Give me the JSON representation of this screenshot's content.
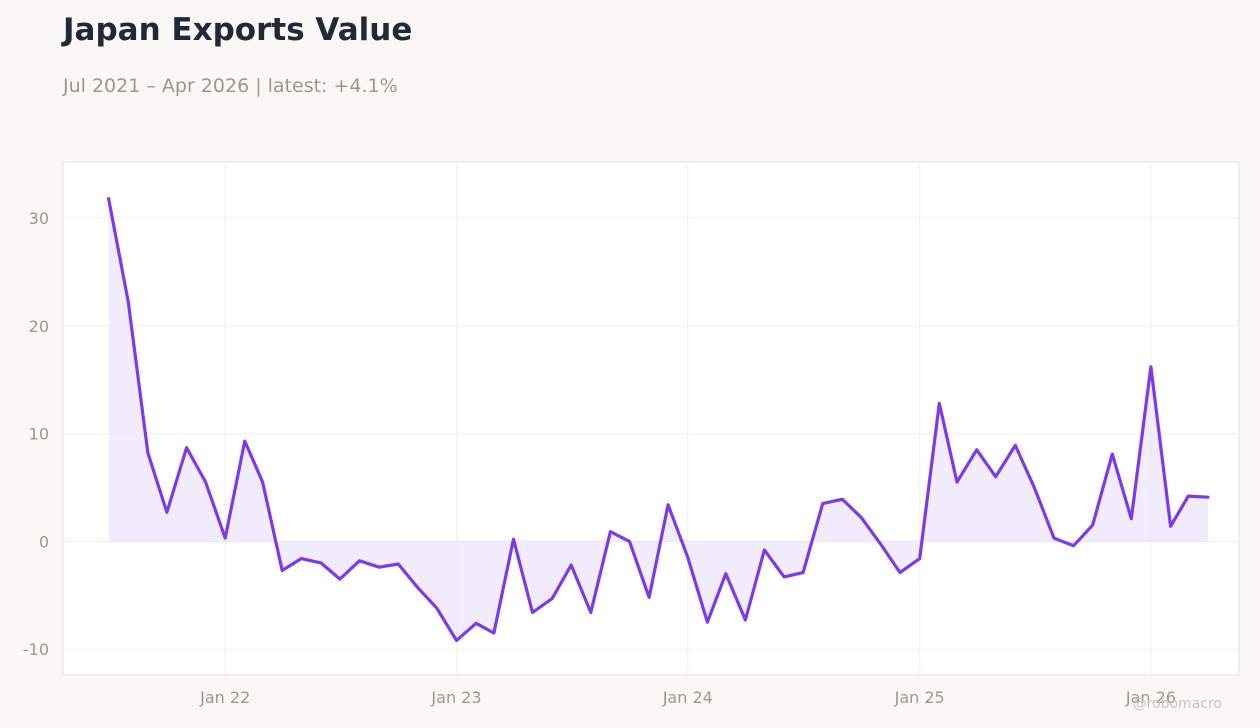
{
  "header": {
    "title": "Japan Exports Value",
    "subtitle": "Jul 2021 – Apr 2026 | latest: +4.1%"
  },
  "watermark": "@robomacro",
  "chart_data": {
    "type": "area",
    "title": "Japan Exports Value",
    "subtitle": "Jul 2021 – Apr 2026 | latest: +4.1%",
    "xlabel": "",
    "ylabel": "",
    "x_start": "2021-07",
    "x_end": "2026-04",
    "ylim": [
      -12.4,
      35.2
    ],
    "xlim": [
      "2021-04-20",
      "2026-05-20"
    ],
    "yticks": [
      30,
      20,
      10,
      0,
      -10
    ],
    "ytick_labels": [
      "30",
      "20",
      "10",
      "0",
      "-10"
    ],
    "xticks": [
      "2022-01",
      "2023-01",
      "2024-01",
      "2025-01",
      "2026-01"
    ],
    "xtick_labels": [
      "Jan 22",
      "Jan 23",
      "Jan 24",
      "Jan 25",
      "Jan 26"
    ],
    "grid": true,
    "legend": "none",
    "colors": {
      "line": "#7c3aed",
      "fill": "#ede5fd",
      "grid": "#f0efec",
      "frame": "#e3e0d9",
      "background": "#ffffff"
    },
    "series": [
      {
        "x": [
          "2021-07",
          "2021-08",
          "2021-09",
          "2021-10",
          "2021-11",
          "2021-12",
          "2022-01",
          "2022-02",
          "2022-03",
          "2022-04",
          "2022-05",
          "2022-06",
          "2022-07",
          "2022-08",
          "2022-09",
          "2022-10",
          "2022-11",
          "2022-12",
          "2023-01",
          "2023-02",
          "2023-03",
          "2023-04",
          "2023-05",
          "2023-06",
          "2023-07",
          "2023-08",
          "2023-09",
          "2023-10",
          "2023-11",
          "2023-12",
          "2024-01",
          "2024-02",
          "2024-03",
          "2024-04",
          "2024-05",
          "2024-06",
          "2024-07",
          "2024-08",
          "2024-09",
          "2024-10",
          "2024-11",
          "2024-12",
          "2025-01",
          "2025-02",
          "2025-03",
          "2025-04",
          "2025-05",
          "2025-06",
          "2025-07",
          "2025-08",
          "2025-09",
          "2025-10",
          "2025-11",
          "2025-12",
          "2026-01",
          "2026-02",
          "2026-03",
          "2026-04"
        ],
        "values": [
          31.8,
          22.2,
          8.2,
          2.7,
          8.7,
          5.5,
          0.3,
          9.3,
          5.5,
          -2.7,
          -1.6,
          -2.0,
          -3.5,
          -1.8,
          -2.4,
          -2.1,
          -4.3,
          -6.2,
          -9.2,
          -7.6,
          -8.5,
          0.2,
          -6.6,
          -5.3,
          -2.2,
          -6.6,
          0.9,
          0.0,
          -5.2,
          3.4,
          -1.5,
          -7.5,
          -3.0,
          -7.3,
          -0.8,
          -3.3,
          -2.9,
          3.5,
          3.9,
          2.2,
          -0.3,
          -2.9,
          -1.6,
          12.8,
          5.5,
          8.5,
          6.0,
          8.9,
          5.0,
          0.3,
          -0.4,
          1.5,
          8.1,
          2.1,
          16.2,
          1.4,
          4.2,
          4.1
        ]
      }
    ]
  }
}
